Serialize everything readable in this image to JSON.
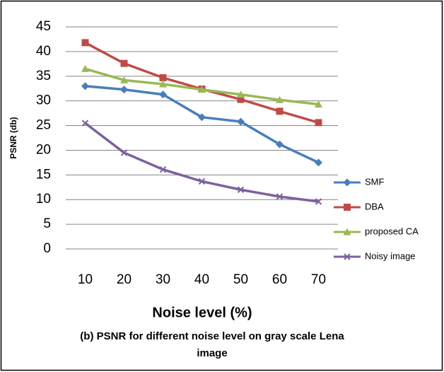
{
  "chart_data": {
    "type": "line",
    "categories": [
      "10",
      "20",
      "30",
      "40",
      "50",
      "60",
      "70"
    ],
    "series": [
      {
        "name": "SMF",
        "color": "#4a7ebb",
        "marker": "diamond",
        "values": [
          33,
          32.3,
          31.3,
          26.7,
          25.8,
          21.2,
          17.5
        ]
      },
      {
        "name": "DBA",
        "color": "#be4b48",
        "marker": "square",
        "values": [
          41.8,
          37.6,
          34.7,
          32.4,
          30.3,
          27.9,
          25.6
        ]
      },
      {
        "name": "proposed CA",
        "color": "#98b954",
        "marker": "triangle",
        "values": [
          36.5,
          34.2,
          33.4,
          32.3,
          31.3,
          30.2,
          29.3
        ]
      },
      {
        "name": "Noisy image",
        "color": "#7d60a0",
        "marker": "x",
        "values": [
          25.5,
          19.5,
          16.1,
          13.7,
          12,
          10.6,
          9.6
        ]
      }
    ],
    "ylim": [
      0,
      45
    ],
    "yticks": [
      0,
      5,
      10,
      15,
      20,
      25,
      30,
      35,
      40,
      45
    ],
    "grid": true,
    "ylabel": "PSNR (db)",
    "xlabel": "Noise level (%)",
    "legend": "right",
    "caption": [
      "(b) PSNR for different noise level on gray scale Lena",
      "image"
    ]
  }
}
